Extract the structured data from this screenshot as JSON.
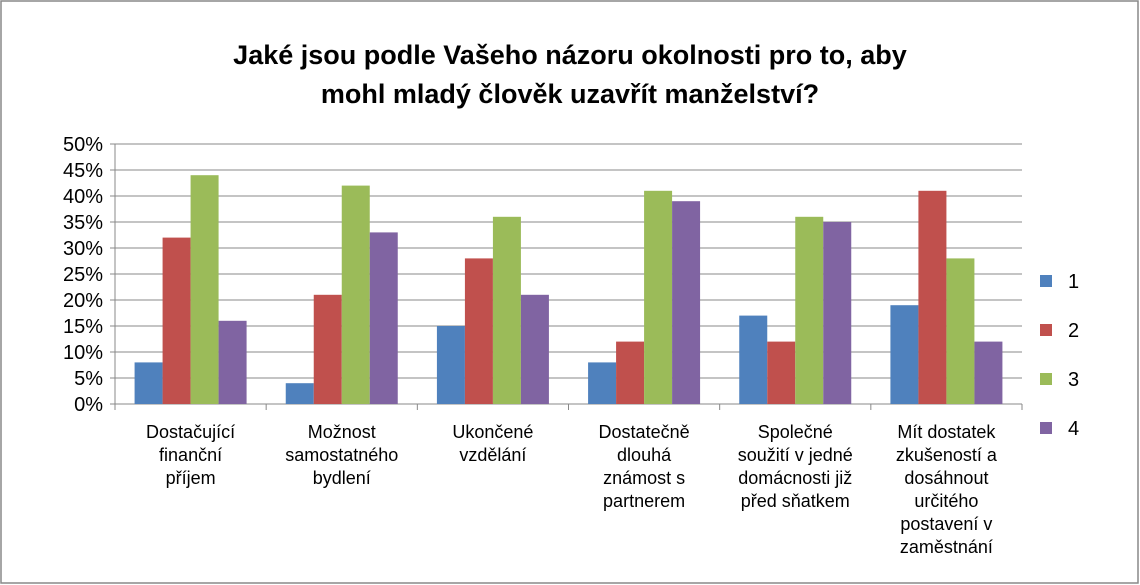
{
  "chart_data": {
    "type": "bar",
    "title": "Jaké jsou podle Vašeho názoru okolnosti pro to, aby\nmohl mladý člověk uzavřít manželství?",
    "categories": [
      "Dostačující\nfinanční\npříjem",
      "Možnost\nsamostatného\nbydlení",
      "Ukončené\nvzdělání",
      "Dostatečně\ndlouhá\nznámost s\npartnerem",
      "Společné\nsoužití v jedné\ndomácnosti již\npřed sňatkem",
      "Mít dostatek\nzkušeností a\ndosáhnout\nurčitého\npostavení v\nzaměstnání"
    ],
    "series": [
      {
        "name": "1",
        "color": "#4f81bd",
        "values": [
          8,
          4,
          15,
          8,
          17,
          19
        ]
      },
      {
        "name": "2",
        "color": "#c0504d",
        "values": [
          32,
          21,
          28,
          12,
          12,
          41
        ]
      },
      {
        "name": "3",
        "color": "#9bbb59",
        "values": [
          44,
          42,
          36,
          41,
          36,
          28
        ]
      },
      {
        "name": "4",
        "color": "#8064a2",
        "values": [
          16,
          33,
          21,
          39,
          35,
          12
        ]
      }
    ],
    "ylim": [
      0,
      50
    ],
    "yticks": [
      {
        "value": 0,
        "label": "0%"
      },
      {
        "value": 5,
        "label": "5%"
      },
      {
        "value": 10,
        "label": "10%"
      },
      {
        "value": 15,
        "label": "15%"
      },
      {
        "value": 20,
        "label": "20%"
      },
      {
        "value": 25,
        "label": "25%"
      },
      {
        "value": 30,
        "label": "30%"
      },
      {
        "value": 35,
        "label": "35%"
      },
      {
        "value": 40,
        "label": "40%"
      },
      {
        "value": 45,
        "label": "45%"
      },
      {
        "value": 50,
        "label": "50%"
      }
    ],
    "grid": true,
    "legend": "right"
  }
}
